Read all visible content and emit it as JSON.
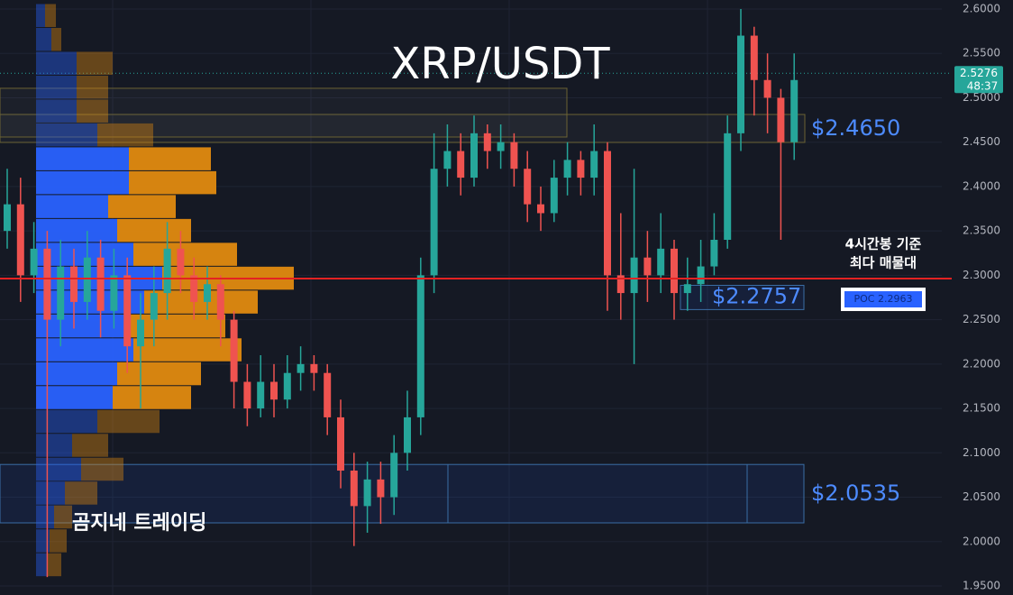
{
  "chart_data": {
    "type": "candlestick",
    "title": "XRP/USDT",
    "ylim": [
      1.95,
      2.6
    ],
    "yticks": [
      {
        "value": 2.6,
        "label": "2.6000"
      },
      {
        "value": 2.55,
        "label": "2.5500"
      },
      {
        "value": 2.5,
        "label": "2.5000"
      },
      {
        "value": 2.45,
        "label": "2.4500"
      },
      {
        "value": 2.4,
        "label": "2.4000"
      },
      {
        "value": 2.35,
        "label": "2.3500"
      },
      {
        "value": 2.3,
        "label": "2.3000"
      },
      {
        "value": 2.25,
        "label": "2.2500"
      },
      {
        "value": 2.2,
        "label": "2.2000"
      },
      {
        "value": 2.15,
        "label": "2.1500"
      },
      {
        "value": 2.1,
        "label": "2.1000"
      },
      {
        "value": 2.05,
        "label": "2.0500"
      },
      {
        "value": 2.0,
        "label": "2.0000"
      },
      {
        "value": 1.95,
        "label": "1.9500"
      }
    ],
    "up_color": "#26a69a",
    "down_color": "#ef5350",
    "open": [
      2.35,
      2.38,
      2.3,
      2.33,
      2.25,
      2.31,
      2.27,
      2.32,
      2.26,
      2.3,
      2.22,
      2.25,
      2.28,
      2.33,
      2.3,
      2.27,
      2.29,
      2.25,
      2.18,
      2.15,
      2.18,
      2.16,
      2.19,
      2.2,
      2.19,
      2.14,
      2.08,
      2.04,
      2.07,
      2.05,
      2.1,
      2.14,
      2.3,
      2.42,
      2.44,
      2.41,
      2.46,
      2.44,
      2.45,
      2.42,
      2.38,
      2.37,
      2.41,
      2.43,
      2.41,
      2.44,
      2.3,
      2.28,
      2.32,
      2.3,
      2.33,
      2.28,
      2.29,
      2.31,
      2.34,
      2.46,
      2.57,
      2.52,
      2.5,
      2.45
    ],
    "high": [
      2.42,
      2.41,
      2.36,
      2.35,
      2.34,
      2.33,
      2.35,
      2.34,
      2.33,
      2.32,
      2.28,
      2.31,
      2.36,
      2.35,
      2.32,
      2.31,
      2.3,
      2.26,
      2.2,
      2.21,
      2.2,
      2.21,
      2.22,
      2.21,
      2.2,
      2.16,
      2.1,
      2.09,
      2.09,
      2.12,
      2.17,
      2.32,
      2.46,
      2.47,
      2.46,
      2.48,
      2.47,
      2.47,
      2.46,
      2.44,
      2.4,
      2.43,
      2.45,
      2.44,
      2.47,
      2.45,
      2.37,
      2.42,
      2.35,
      2.37,
      2.34,
      2.32,
      2.34,
      2.37,
      2.48,
      2.6,
      2.58,
      2.55,
      2.51,
      2.55
    ],
    "low": [
      2.33,
      2.27,
      2.28,
      1.96,
      2.22,
      2.24,
      2.25,
      2.23,
      2.24,
      2.19,
      2.15,
      2.22,
      2.25,
      2.28,
      2.25,
      2.25,
      2.22,
      2.15,
      2.13,
      2.14,
      2.14,
      2.15,
      2.17,
      2.17,
      2.12,
      2.06,
      1.995,
      2.01,
      2.02,
      2.03,
      2.08,
      2.12,
      2.28,
      2.4,
      2.39,
      2.4,
      2.42,
      2.42,
      2.4,
      2.36,
      2.35,
      2.36,
      2.39,
      2.39,
      2.39,
      2.26,
      2.25,
      2.2,
      2.27,
      2.28,
      2.25,
      2.26,
      2.27,
      2.3,
      2.33,
      2.44,
      2.48,
      2.46,
      2.34,
      2.43
    ],
    "close": [
      2.38,
      2.3,
      2.33,
      2.25,
      2.31,
      2.27,
      2.32,
      2.26,
      2.3,
      2.22,
      2.25,
      2.28,
      2.33,
      2.3,
      2.27,
      2.29,
      2.25,
      2.18,
      2.15,
      2.18,
      2.16,
      2.19,
      2.2,
      2.19,
      2.14,
      2.08,
      2.04,
      2.07,
      2.05,
      2.1,
      2.14,
      2.3,
      2.42,
      2.44,
      2.41,
      2.46,
      2.44,
      2.45,
      2.42,
      2.38,
      2.37,
      2.41,
      2.43,
      2.41,
      2.44,
      2.3,
      2.28,
      2.32,
      2.3,
      2.33,
      2.28,
      2.29,
      2.31,
      2.34,
      2.46,
      2.57,
      2.52,
      2.5,
      2.45,
      2.52
    ],
    "profile": {
      "bins": [
        2.6061,
        2.5792,
        2.5523,
        2.5254,
        2.4985,
        2.4716,
        2.4447,
        2.4178,
        2.3909,
        2.364,
        2.3371,
        2.3102,
        2.2833,
        2.2564,
        2.2295,
        2.2026,
        2.1757,
        2.1488,
        2.1219,
        2.095,
        2.0681,
        2.0412,
        2.0143,
        1.9874,
        1.9605
      ],
      "buy": [
        10,
        17,
        45,
        45,
        45,
        68,
        103,
        103,
        80,
        90,
        108,
        140,
        120,
        103,
        108,
        90,
        85,
        68,
        40,
        50,
        32,
        20,
        15,
        12
      ],
      "sell": [
        12,
        11,
        40,
        35,
        35,
        62,
        91,
        97,
        75,
        82,
        115,
        146,
        126,
        107,
        120,
        93,
        87,
        69,
        40,
        47,
        36,
        20,
        19,
        16
      ],
      "buy_color": "#2962ff",
      "sell_color": "#e08a10",
      "value_area": [
        2.1488,
        2.4447
      ]
    },
    "poc": {
      "value": 2.2963,
      "label": "POC 2.2963"
    },
    "poc_note": [
      "4시간봉 기준",
      "최다 매물대"
    ],
    "current_price": 2.5276,
    "countdown": "48:37",
    "zones": [
      {
        "label": "$2.4650",
        "value": 2.465,
        "top": 2.4812,
        "bottom": 2.4497
      },
      {
        "label": "$2.2757",
        "value": 2.2757,
        "top": 2.2887,
        "bottom": 2.2614
      },
      {
        "label": "$2.0535",
        "value": 2.0535,
        "top": 2.0869,
        "bottom": 2.0211
      }
    ],
    "watermark": "곰지네 트레이딩"
  }
}
